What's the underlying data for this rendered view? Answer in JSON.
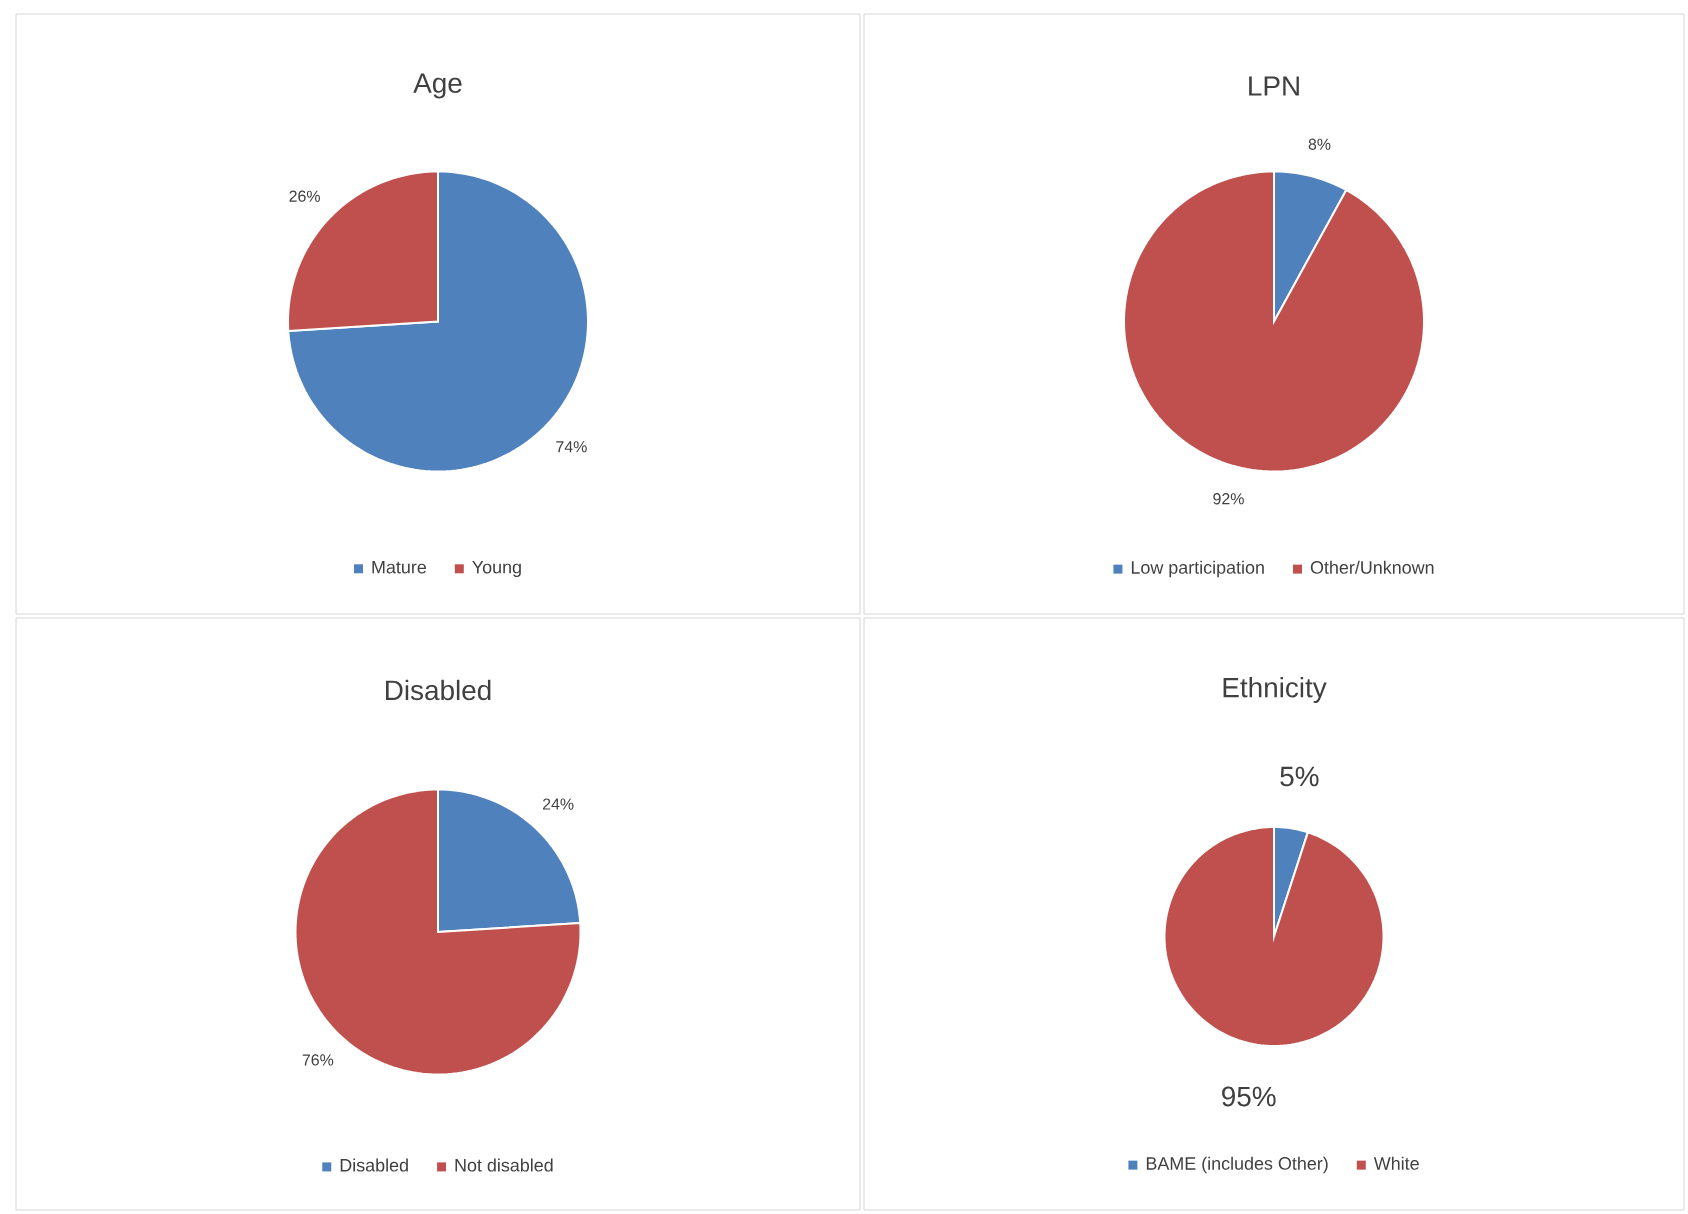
{
  "chart_data": [
    {
      "type": "pie",
      "title": "Age",
      "categories": [
        "Mature",
        "Young"
      ],
      "values": [
        74,
        26
      ],
      "colors": [
        "#4f81bd",
        "#c0504d"
      ],
      "value_labels": [
        "74%",
        "26%"
      ],
      "legend": "bottom"
    },
    {
      "type": "pie",
      "title": "LPN",
      "categories": [
        "Low participation",
        "Other/Unknown"
      ],
      "values": [
        8,
        92
      ],
      "colors": [
        "#4f81bd",
        "#c0504d"
      ],
      "value_labels": [
        "8%",
        "92%"
      ],
      "legend": "bottom"
    },
    {
      "type": "pie",
      "title": "Disabled",
      "categories": [
        "Disabled",
        "Not disabled"
      ],
      "values": [
        24,
        76
      ],
      "colors": [
        "#4f81bd",
        "#c0504d"
      ],
      "value_labels": [
        "24%",
        "76%"
      ],
      "legend": "bottom"
    },
    {
      "type": "pie",
      "title": "Ethnicity",
      "categories": [
        "BAME (includes Other)",
        "White"
      ],
      "values": [
        5,
        95
      ],
      "colors": [
        "#4f81bd",
        "#c0504d"
      ],
      "value_labels": [
        "5%",
        "95%"
      ],
      "legend": "bottom"
    }
  ]
}
